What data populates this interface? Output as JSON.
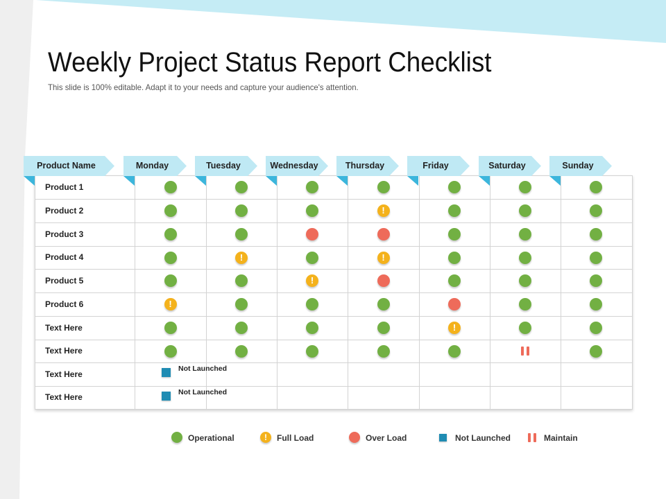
{
  "title": "Weekly Project Status Report Checklist",
  "subtitle": "This slide is 100% editable. Adapt it to your needs and capture your audience's attention.",
  "colors": {
    "header_tab": "#bfe9f4",
    "header_fold": "#3cb6dc",
    "operational": "#72b043",
    "full_load": "#f4b21c",
    "over_load": "#ee6b5a",
    "not_launched": "#1f8cb3",
    "maintain": "#ee6b5a",
    "bg_band": "#c5ecf5",
    "bg_side": "#efefef"
  },
  "table": {
    "headers": [
      "Product Name",
      "Monday",
      "Tuesday",
      "Wednesday",
      "Thursday",
      "Friday",
      "Saturday",
      "Sunday"
    ],
    "rows": [
      {
        "label": "Product 1",
        "cells": [
          "operational",
          "operational",
          "operational",
          "operational",
          "operational",
          "operational",
          "operational"
        ]
      },
      {
        "label": "Product 2",
        "cells": [
          "operational",
          "operational",
          "operational",
          "full_load",
          "operational",
          "operational",
          "operational"
        ]
      },
      {
        "label": "Product 3",
        "cells": [
          "operational",
          "operational",
          "over_load",
          "over_load",
          "operational",
          "operational",
          "operational"
        ]
      },
      {
        "label": "Product 4",
        "cells": [
          "operational",
          "full_load",
          "operational",
          "full_load",
          "operational",
          "operational",
          "operational"
        ]
      },
      {
        "label": "Product 5",
        "cells": [
          "operational",
          "operational",
          "full_load",
          "over_load",
          "operational",
          "operational",
          "operational"
        ]
      },
      {
        "label": "Product 6",
        "cells": [
          "full_load",
          "operational",
          "operational",
          "operational",
          "over_load",
          "operational",
          "operational"
        ]
      },
      {
        "label": "Text Here",
        "cells": [
          "operational",
          "operational",
          "operational",
          "operational",
          "full_load",
          "operational",
          "operational"
        ]
      },
      {
        "label": "Text Here",
        "cells": [
          "operational",
          "operational",
          "operational",
          "operational",
          "operational",
          "maintain",
          "operational"
        ]
      },
      {
        "label": "Text Here",
        "not_launched_text": "Not Launched"
      },
      {
        "label": "Text Here",
        "not_launched_text": "Not Launched"
      }
    ]
  },
  "legend": [
    {
      "key": "operational",
      "label": "Operational"
    },
    {
      "key": "full_load",
      "label": "Full Load"
    },
    {
      "key": "over_load",
      "label": "Over Load"
    },
    {
      "key": "not_launched",
      "label": "Not Launched"
    },
    {
      "key": "maintain",
      "label": "Maintain"
    }
  ],
  "icons": {
    "operational": "green-circle-icon",
    "full_load": "exclamation-circle-icon",
    "over_load": "red-circle-icon",
    "not_launched": "blue-square-icon",
    "maintain": "pause-bars-icon"
  }
}
